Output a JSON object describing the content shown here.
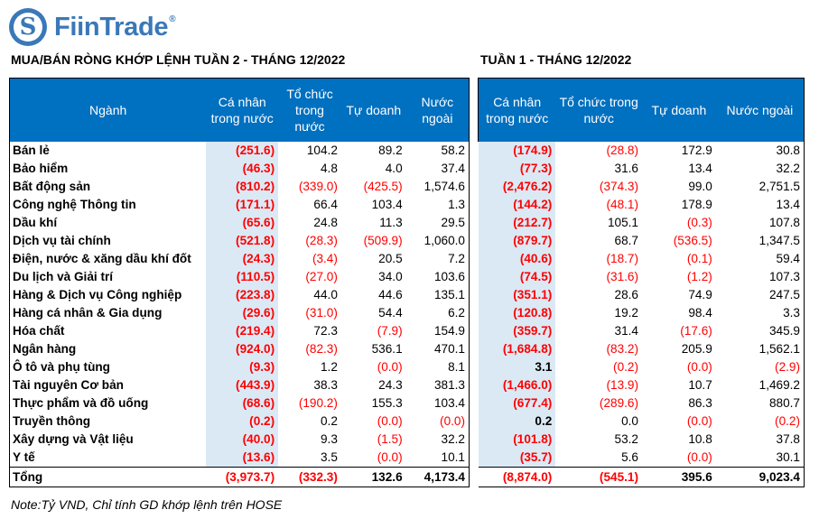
{
  "brand": {
    "name": "FiinTrade",
    "registered": "®",
    "logo_icon": "fiintrade-s-logo"
  },
  "left_title": "MUA/BÁN RÒNG KHỚP LỆNH TUẦN 2 - THÁNG 12/2022",
  "right_title": "TUẦN 1 - THÁNG 12/2022",
  "left_headers": [
    "Ngành",
    "Cá nhân trong nước",
    "Tổ chức trong nước",
    "Tự doanh",
    "Nước ngoài"
  ],
  "right_headers": [
    "Cá nhân trong nước",
    "Tổ chức trong nước",
    "Tự doanh",
    "Nước ngoài"
  ],
  "rows": [
    {
      "sector": "Bán lẻ",
      "w2": [
        "(251.6)",
        "104.2",
        "89.2",
        "58.2"
      ],
      "w1": [
        "(174.9)",
        "(28.8)",
        "172.9",
        "30.8"
      ]
    },
    {
      "sector": "Bảo hiểm",
      "w2": [
        "(46.3)",
        "4.8",
        "4.0",
        "37.4"
      ],
      "w1": [
        "(77.3)",
        "31.6",
        "13.4",
        "32.2"
      ]
    },
    {
      "sector": "Bất động sản",
      "w2": [
        "(810.2)",
        "(339.0)",
        "(425.5)",
        "1,574.6"
      ],
      "w1": [
        "(2,476.2)",
        "(374.3)",
        "99.0",
        "2,751.5"
      ]
    },
    {
      "sector": "Công nghệ Thông tin",
      "w2": [
        "(171.1)",
        "66.4",
        "103.4",
        "1.3"
      ],
      "w1": [
        "(144.2)",
        "(48.1)",
        "178.9",
        "13.4"
      ]
    },
    {
      "sector": "Dầu khí",
      "w2": [
        "(65.6)",
        "24.8",
        "11.3",
        "29.5"
      ],
      "w1": [
        "(212.7)",
        "105.1",
        "(0.3)",
        "107.8"
      ]
    },
    {
      "sector": "Dịch vụ tài chính",
      "w2": [
        "(521.8)",
        "(28.3)",
        "(509.9)",
        "1,060.0"
      ],
      "w1": [
        "(879.7)",
        "68.7",
        "(536.5)",
        "1,347.5"
      ]
    },
    {
      "sector": "Điện, nước & xăng dầu khí đốt",
      "w2": [
        "(24.3)",
        "(3.4)",
        "20.5",
        "7.2"
      ],
      "w1": [
        "(40.6)",
        "(18.7)",
        "(0.1)",
        "59.4"
      ]
    },
    {
      "sector": "Du lịch và Giải trí",
      "w2": [
        "(110.5)",
        "(27.0)",
        "34.0",
        "103.6"
      ],
      "w1": [
        "(74.5)",
        "(31.6)",
        "(1.2)",
        "107.3"
      ]
    },
    {
      "sector": "Hàng & Dịch vụ Công nghiệp",
      "w2": [
        "(223.8)",
        "44.0",
        "44.6",
        "135.1"
      ],
      "w1": [
        "(351.1)",
        "28.6",
        "74.9",
        "247.5"
      ]
    },
    {
      "sector": "Hàng cá nhân & Gia dụng",
      "w2": [
        "(29.6)",
        "(31.0)",
        "54.4",
        "6.2"
      ],
      "w1": [
        "(120.8)",
        "19.2",
        "98.4",
        "3.3"
      ]
    },
    {
      "sector": "Hóa chất",
      "w2": [
        "(219.4)",
        "72.3",
        "(7.9)",
        "154.9"
      ],
      "w1": [
        "(359.7)",
        "31.4",
        "(17.6)",
        "345.9"
      ]
    },
    {
      "sector": "Ngân hàng",
      "w2": [
        "(924.0)",
        "(82.3)",
        "536.1",
        "470.1"
      ],
      "w1": [
        "(1,684.8)",
        "(83.2)",
        "205.9",
        "1,562.1"
      ]
    },
    {
      "sector": "Ô tô và phụ tùng",
      "w2": [
        "(9.3)",
        "1.2",
        "(0.0)",
        "8.1"
      ],
      "w1": [
        "3.1",
        "(0.2)",
        "(0.0)",
        "(2.9)"
      ]
    },
    {
      "sector": "Tài nguyên Cơ bản",
      "w2": [
        "(443.9)",
        "38.3",
        "24.3",
        "381.3"
      ],
      "w1": [
        "(1,466.0)",
        "(13.9)",
        "10.7",
        "1,469.2"
      ]
    },
    {
      "sector": "Thực phẩm và đồ uống",
      "w2": [
        "(68.6)",
        "(190.2)",
        "155.3",
        "103.4"
      ],
      "w1": [
        "(677.4)",
        "(289.6)",
        "86.3",
        "880.7"
      ]
    },
    {
      "sector": "Truyền thông",
      "w2": [
        "(0.2)",
        "0.2",
        "(0.0)",
        "(0.0)"
      ],
      "w1": [
        "0.2",
        "0.0",
        "(0.0)",
        "(0.2)"
      ]
    },
    {
      "sector": "Xây dựng và Vật liệu",
      "w2": [
        "(40.0)",
        "9.3",
        "(1.5)",
        "32.2"
      ],
      "w1": [
        "(101.8)",
        "53.2",
        "10.8",
        "37.8"
      ]
    },
    {
      "sector": "Y tế",
      "w2": [
        "(13.6)",
        "3.5",
        "(0.0)",
        "10.1"
      ],
      "w1": [
        "(35.7)",
        "5.6",
        "(0.0)",
        "30.1"
      ]
    }
  ],
  "total": {
    "label": "Tổng",
    "w2": [
      "(3,973.7)",
      "(332.3)",
      "132.6",
      "4,173.4"
    ],
    "w1": [
      "(8,874.0)",
      "(545.1)",
      "395.6",
      "9,023.4"
    ]
  },
  "colors": {
    "header_bg": "#0070c0",
    "highlight_col": "#dbe9f5",
    "negative": "#ff0000",
    "brand": "#3a78b8"
  },
  "note": "Note:Tỷ VND,  Chỉ tính GD khớp lệnh trên HOSE"
}
